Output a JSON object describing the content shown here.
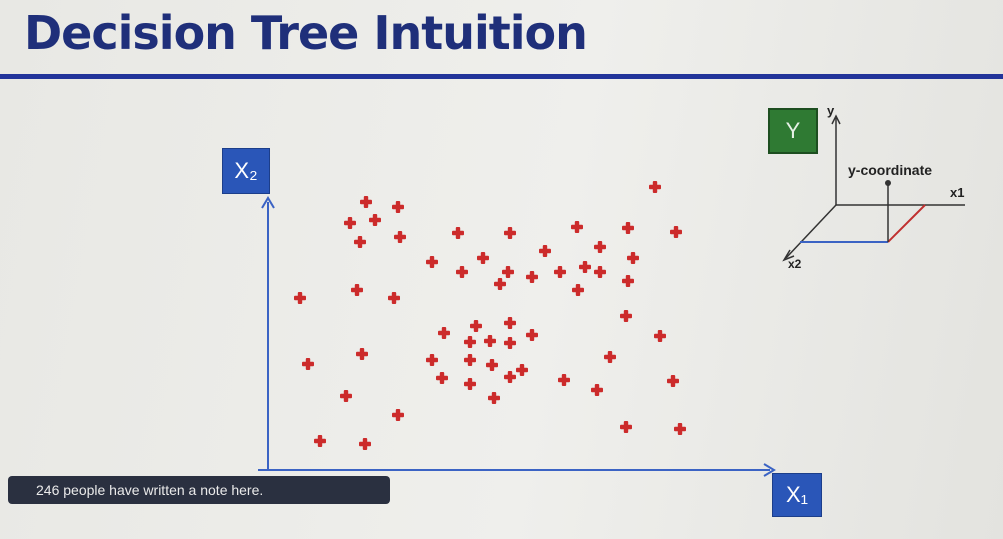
{
  "slide": {
    "title": "Decision Tree Intuition"
  },
  "axes": {
    "x_label": "X₁",
    "y_label": "X₂"
  },
  "target": {
    "label": "Y"
  },
  "mini_axes": {
    "y_label": "y",
    "x1_label": "x1",
    "x2_label": "x2",
    "annotation": "y-coordinate"
  },
  "notification": {
    "text": "246 people have written a note here."
  },
  "colors": {
    "title": "#1f2f7a",
    "axis": "#2a56b8",
    "marker": "#cc2b2b",
    "target_box": "#2f7a33"
  },
  "points": [
    [
      366,
      202
    ],
    [
      398,
      207
    ],
    [
      350,
      223
    ],
    [
      375,
      220
    ],
    [
      360,
      242
    ],
    [
      400,
      237
    ],
    [
      458,
      233
    ],
    [
      510,
      233
    ],
    [
      577,
      227
    ],
    [
      628,
      228
    ],
    [
      676,
      232
    ],
    [
      655,
      187
    ],
    [
      432,
      262
    ],
    [
      462,
      272
    ],
    [
      483,
      258
    ],
    [
      545,
      251
    ],
    [
      600,
      247
    ],
    [
      633,
      258
    ],
    [
      500,
      284
    ],
    [
      508,
      272
    ],
    [
      532,
      277
    ],
    [
      560,
      272
    ],
    [
      585,
      267
    ],
    [
      600,
      272
    ],
    [
      578,
      290
    ],
    [
      628,
      281
    ],
    [
      300,
      298
    ],
    [
      357,
      290
    ],
    [
      394,
      298
    ],
    [
      626,
      316
    ],
    [
      660,
      336
    ],
    [
      444,
      333
    ],
    [
      476,
      326
    ],
    [
      510,
      323
    ],
    [
      532,
      335
    ],
    [
      470,
      342
    ],
    [
      490,
      341
    ],
    [
      510,
      343
    ],
    [
      308,
      364
    ],
    [
      362,
      354
    ],
    [
      432,
      360
    ],
    [
      470,
      360
    ],
    [
      492,
      365
    ],
    [
      522,
      370
    ],
    [
      610,
      357
    ],
    [
      442,
      378
    ],
    [
      470,
      384
    ],
    [
      510,
      377
    ],
    [
      564,
      380
    ],
    [
      597,
      390
    ],
    [
      673,
      381
    ],
    [
      346,
      396
    ],
    [
      494,
      398
    ],
    [
      398,
      415
    ],
    [
      626,
      427
    ],
    [
      680,
      429
    ],
    [
      320,
      441
    ],
    [
      365,
      444
    ]
  ]
}
